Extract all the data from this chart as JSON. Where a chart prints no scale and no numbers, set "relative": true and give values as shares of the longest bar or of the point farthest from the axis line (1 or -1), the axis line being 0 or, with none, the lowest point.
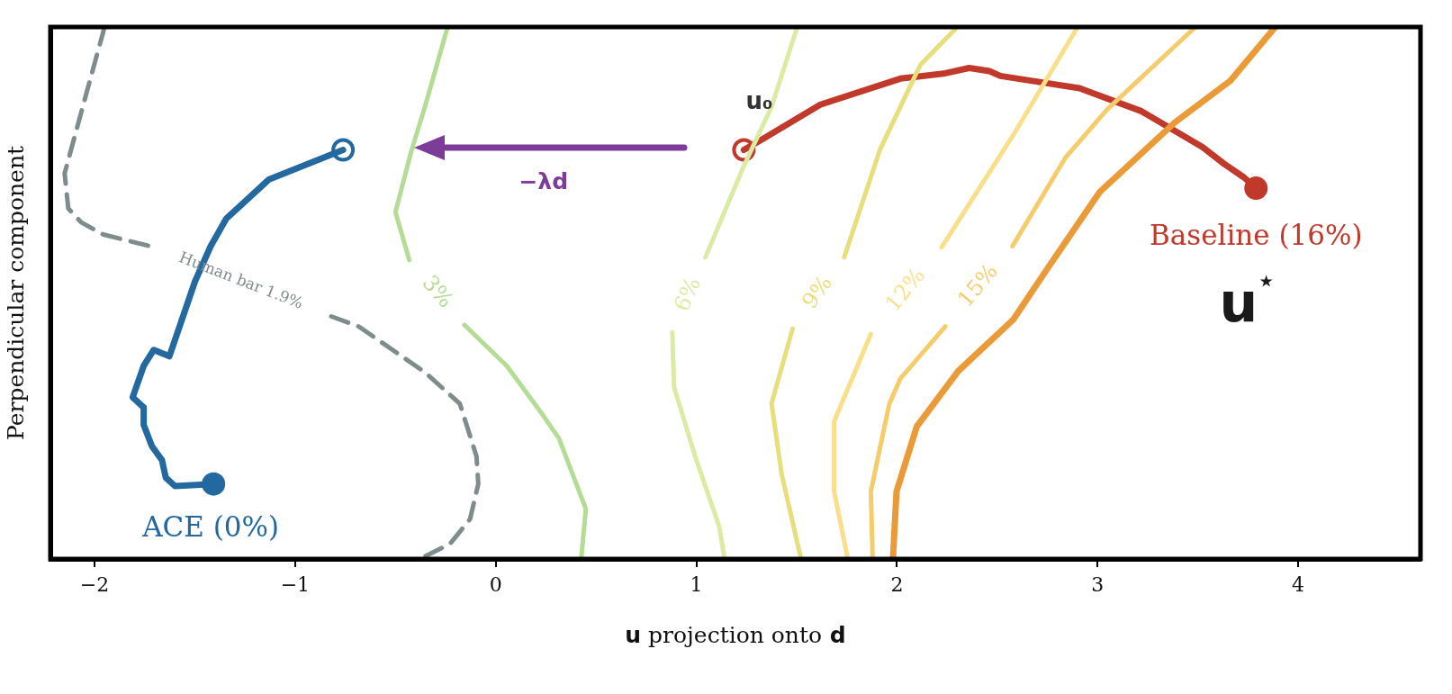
{
  "chart_data": {
    "type": "line",
    "relative": true,
    "xlabel": "u projection onto d",
    "ylabel": "Perpendicular component",
    "xlim": [
      -2.22,
      4.61
    ],
    "xticks": [
      -2,
      -1,
      0,
      1,
      2,
      3,
      4
    ],
    "tick_labels": "x",
    "legend": false,
    "grid": false,
    "line_style": "solid",
    "series": [
      {
        "name": "Human bar 1.9%",
        "color": "#7f8c8d",
        "line_style": "dashed",
        "x": [
          -1.95,
          -2.035,
          -2.149,
          -2.131,
          -2.067,
          -1.957,
          -1.723,
          -1.27,
          -0.82,
          -0.683,
          -0.353,
          -0.179,
          -0.096,
          -0.087,
          -0.128,
          -0.229,
          -0.38
        ],
        "values": [
          1,
          0.883,
          0.725,
          0.659,
          0.633,
          0.61,
          0.588,
          null,
          0.456,
          0.437,
          0.351,
          0.292,
          0.193,
          0.141,
          0.075,
          0.028,
          0
        ]
      },
      {
        "name": "3%",
        "color": "#b5dc95",
        "x": [
          -0.24,
          -0.353,
          -0.422,
          -0.5,
          -0.431,
          -0.3,
          -0.156,
          0.055,
          0.234,
          0.316,
          0.449,
          0.426
        ],
        "values": [
          1,
          0.85,
          0.765,
          0.652,
          0.562,
          null,
          0.44,
          0.363,
          0.271,
          0.226,
          0.094,
          0
        ]
      },
      {
        "name": "6%",
        "color": "#dceba3",
        "x": [
          1.503,
          1.375,
          1.237,
          1.045,
          0.96,
          0.88,
          0.889,
          0.994,
          1.114,
          1.141
        ],
        "values": [
          1,
          0.85,
          0.739,
          0.567,
          null,
          0.426,
          0.323,
          0.193,
          0.061,
          0
        ]
      },
      {
        "name": "9%",
        "color": "#e6df7c",
        "x": [
          2.301,
          2.117,
          1.916,
          1.737,
          1.6,
          1.48,
          1.375,
          1.425,
          1.522
        ],
        "values": [
          1,
          0.929,
          0.77,
          0.567,
          null,
          0.433,
          0.292,
          0.16,
          0
        ]
      },
      {
        "name": "12%",
        "color": "#f9df8a",
        "x": [
          2.901,
          2.585,
          2.223,
          2.05,
          1.87,
          1.687,
          1.687,
          1.755
        ],
        "values": [
          1,
          0.8,
          0.586,
          null,
          0.423,
          0.259,
          0.127,
          0
        ]
      },
      {
        "name": "15%",
        "color": "#f6cc6b",
        "x": [
          3.488,
          3.048,
          2.841,
          2.576,
          2.4,
          2.241,
          2.017,
          1.962,
          1.87,
          1.879
        ],
        "values": [
          1,
          0.845,
          0.755,
          0.588,
          null,
          0.437,
          0.339,
          0.292,
          0.127,
          0
        ]
      },
      {
        "color": "#eb9a38",
        "x": [
          3.886,
          3.662,
          3.387,
          3.011,
          2.754,
          2.58,
          2.305,
          2.099,
          1.998,
          1.98
        ],
        "values": [
          1,
          0.899,
          0.821,
          0.69,
          0.548,
          0.45,
          0.353,
          0.249,
          0.127,
          0
        ]
      },
      {
        "color": "#23689e",
        "x": [
          -0.761,
          -1.132,
          -1.343,
          -1.421,
          -1.499,
          -1.627,
          -1.705,
          -1.755,
          -1.81,
          -1.755,
          -1.755,
          -1.714,
          -1.664,
          -1.645,
          -1.599,
          -1.407
        ],
        "values": [
          0.769,
          0.713,
          0.64,
          0.588,
          0.522,
          0.381,
          0.393,
          0.363,
          0.304,
          0.285,
          0.252,
          0.212,
          0.186,
          0.153,
          0.137,
          0.141
        ]
      },
      {
        "color": "#c0392b",
        "x": [
          1.237,
          1.338,
          1.618,
          2.017,
          2.241,
          2.36,
          2.461,
          2.516,
          2.704,
          2.91,
          3.217,
          3.524,
          3.63,
          3.731,
          3.79
        ],
        "values": [
          0.769,
          0.791,
          0.854,
          0.903,
          0.913,
          0.923,
          0.917,
          0.908,
          0.897,
          0.885,
          0.842,
          0.774,
          0.743,
          0.717,
          0.697
        ]
      },
      {
        "type": "scatter",
        "marker": "circle",
        "color": "#23689e",
        "x": [
          -0.761,
          -1.407
        ],
        "values": [
          0.769,
          0.141
        ]
      },
      {
        "type": "scatter",
        "marker": "circle",
        "color": "#c0392b",
        "x": [
          1.237,
          3.79
        ],
        "values": [
          0.769,
          0.697
        ]
      }
    ],
    "annotations": [
      "u₀",
      "−λd",
      "Baseline (16%)",
      "u$^{⋆}$",
      "ACE (0%)"
    ]
  }
}
